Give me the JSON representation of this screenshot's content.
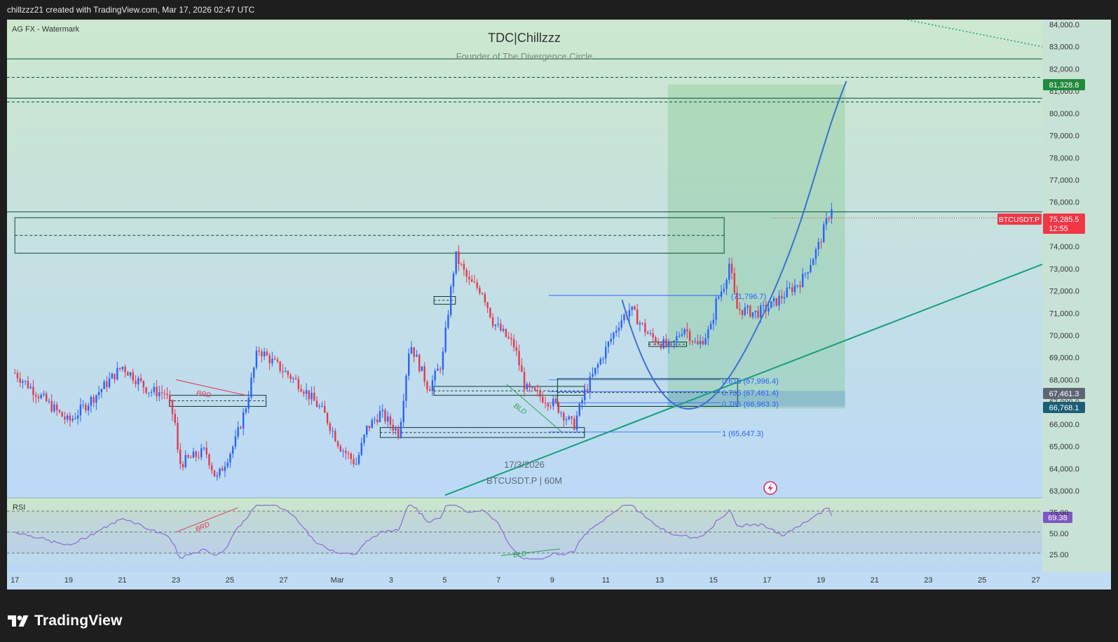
{
  "header": {
    "attribution": "chillzzz21 created with TradingView.com, Mar 17, 2026 02:47 UTC"
  },
  "watermark": {
    "left_label": "AG FX - Watermark",
    "title": "TDC|Chillzzz",
    "subtitle": "Founder of The Divergence Circle",
    "date": "17/3/2026",
    "symbol_tf": "BTCUSDT.P | 60M"
  },
  "footer": {
    "brand": "TradingView"
  },
  "colors": {
    "bg_top": "#cde8cd",
    "bg_bottom": "#bcd9f7",
    "up": "#2962ff",
    "down": "#e03a4e",
    "target_zone": "#93cf98",
    "trendline": "#15a07c",
    "curve": "#3d6fd6",
    "price_tag": "#f23645",
    "level_tag": "#1f8a3a",
    "rsi_line": "#8e6bd2"
  },
  "price_axis": {
    "ticks": [
      "84,000.0",
      "83,000.0",
      "82,000.0",
      "81,000.0",
      "80,000.0",
      "79,000.0",
      "78,000.0",
      "77,000.0",
      "76,000.0",
      "75,000.0",
      "74,000.0",
      "73,000.0",
      "72,000.0",
      "71,000.0",
      "70,000.0",
      "69,000.0",
      "68,000.0",
      "67,000.0",
      "66,000.0",
      "65,000.0",
      "64,000.0",
      "63,000.0"
    ],
    "range": [
      62700,
      84250
    ]
  },
  "price_labels": {
    "target": "81,328.8",
    "symbol": "BTCUSDT.P",
    "last_price": "75,285.5",
    "countdown": "12:55",
    "level_a": "67,461.3",
    "level_b": "66,768.1"
  },
  "fib_labels": [
    "(71,796.7)",
    "0.618 (67,996.4)",
    "0.705 (67,461.4)",
    "0.786 (66,963.3)",
    "1 (65,647.3)"
  ],
  "annotations": {
    "brd": "BRD",
    "bld": "BLD"
  },
  "rsi": {
    "label": "RSI",
    "value": "69.38",
    "ticks": [
      "75.00",
      "50.00",
      "25.00"
    ]
  },
  "time_axis": {
    "labels": [
      "17",
      "19",
      "21",
      "23",
      "25",
      "27",
      "Mar",
      "3",
      "5",
      "7",
      "9",
      "11",
      "13",
      "15",
      "17",
      "19",
      "21",
      "23",
      "25",
      "27"
    ]
  },
  "chart_data": {
    "type": "candlestick",
    "symbol": "BTCUSDT.P",
    "timeframe": "60M",
    "x_labels": [
      "17",
      "19",
      "21",
      "23",
      "25",
      "27",
      "Mar",
      "3",
      "5",
      "7",
      "9",
      "11",
      "13",
      "15",
      "17",
      "19",
      "21",
      "23",
      "25",
      "27"
    ],
    "anchors": [
      {
        "d": 0,
        "p": 68300
      },
      {
        "d": 1,
        "p": 67200
      },
      {
        "d": 2,
        "p": 66100
      },
      {
        "d": 3,
        "p": 67300
      },
      {
        "d": 4,
        "p": 68600
      },
      {
        "d": 5,
        "p": 67500
      },
      {
        "d": 5.6,
        "p": 67400
      },
      {
        "d": 5.95,
        "p": 66200
      },
      {
        "d": 6.1,
        "p": 64200
      },
      {
        "d": 7.1,
        "p": 64800
      },
      {
        "d": 7.5,
        "p": 63500
      },
      {
        "d": 8.2,
        "p": 65200
      },
      {
        "d": 8.6,
        "p": 66800
      },
      {
        "d": 9.05,
        "p": 69400
      },
      {
        "d": 9.6,
        "p": 68800
      },
      {
        "d": 10.6,
        "p": 67800
      },
      {
        "d": 11.5,
        "p": 66500
      },
      {
        "d": 12.1,
        "p": 65000
      },
      {
        "d": 12.7,
        "p": 64200
      },
      {
        "d": 13.1,
        "p": 65800
      },
      {
        "d": 13.6,
        "p": 66500
      },
      {
        "d": 14.3,
        "p": 65600
      },
      {
        "d": 14.7,
        "p": 69700
      },
      {
        "d": 15.4,
        "p": 67600
      },
      {
        "d": 15.9,
        "p": 68800
      },
      {
        "d": 16.2,
        "p": 71800
      },
      {
        "d": 16.4,
        "p": 73600
      },
      {
        "d": 16.9,
        "p": 72400
      },
      {
        "d": 17.4,
        "p": 72000
      },
      {
        "d": 17.8,
        "p": 70600
      },
      {
        "d": 18.6,
        "p": 69500
      },
      {
        "d": 19.0,
        "p": 67600
      },
      {
        "d": 20.1,
        "p": 66900
      },
      {
        "d": 20.8,
        "p": 65900
      },
      {
        "d": 21.2,
        "p": 67400
      },
      {
        "d": 21.8,
        "p": 68900
      },
      {
        "d": 22.5,
        "p": 70600
      },
      {
        "d": 22.9,
        "p": 71200
      },
      {
        "d": 23.6,
        "p": 70000
      },
      {
        "d": 24.4,
        "p": 69400
      },
      {
        "d": 24.9,
        "p": 70400
      },
      {
        "d": 25.4,
        "p": 69500
      },
      {
        "d": 25.9,
        "p": 70300
      },
      {
        "d": 26.1,
        "p": 71500
      },
      {
        "d": 26.4,
        "p": 72300
      },
      {
        "d": 26.6,
        "p": 73300
      },
      {
        "d": 26.85,
        "p": 71200
      },
      {
        "d": 27.6,
        "p": 71000
      },
      {
        "d": 28.1,
        "p": 71300
      },
      {
        "d": 28.7,
        "p": 71900
      },
      {
        "d": 29.3,
        "p": 72500
      },
      {
        "d": 29.9,
        "p": 74000
      },
      {
        "d": 30.4,
        "p": 75800
      }
    ],
    "zones": [
      {
        "name": "target",
        "from_day": 24.3,
        "to_day": 30.9,
        "low": 66700,
        "high": 81300
      },
      {
        "name": "entry",
        "from_day": 24.3,
        "to_day": 30.9,
        "low": 66800,
        "high": 67500
      },
      {
        "name": "resistance",
        "from_day": 0,
        "to_day": 26.4,
        "low": 73700,
        "high": 75300
      }
    ],
    "fib_levels": [
      {
        "ratio": "",
        "price": 71796.7
      },
      {
        "ratio": "0.618",
        "price": 67996.4
      },
      {
        "ratio": "0.705",
        "price": 67461.4
      },
      {
        "ratio": "0.786",
        "price": 66963.3
      },
      {
        "ratio": "1",
        "price": 65647.3
      }
    ],
    "last_price": 75285.5,
    "target_price": 81328.8,
    "ylim": [
      62700,
      84250
    ],
    "xlim_days": [
      0,
      38.7
    ],
    "grid": false,
    "rsi": {
      "last": 69.38,
      "levels": [
        75,
        50,
        25
      ],
      "ylim": [
        15,
        85
      ]
    }
  }
}
